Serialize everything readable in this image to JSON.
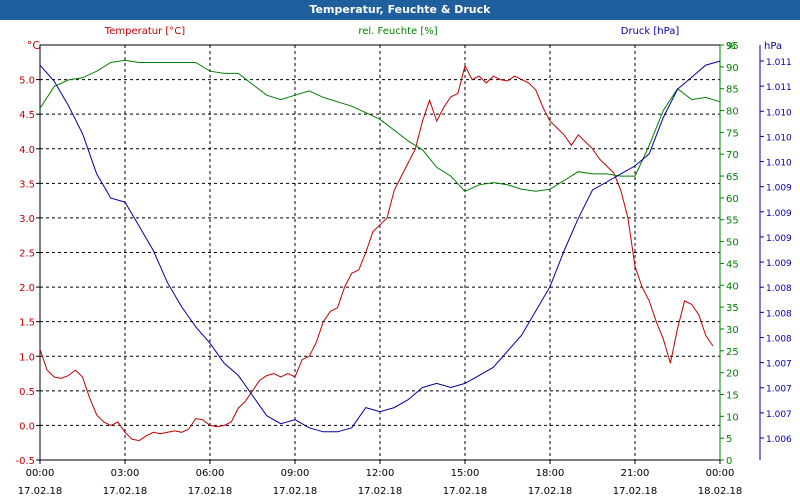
{
  "chart_data": {
    "type": "line",
    "title": "Temperatur, Feuchte & Druck",
    "x_axis": {
      "ticks": [
        {
          "time": "00:00",
          "date": "17.02.18"
        },
        {
          "time": "03:00",
          "date": "17.02.18"
        },
        {
          "time": "06:00",
          "date": "17.02.18"
        },
        {
          "time": "09:00",
          "date": "17.02.18"
        },
        {
          "time": "12:00",
          "date": "17.02.18"
        },
        {
          "time": "15:00",
          "date": "17.02.18"
        },
        {
          "time": "18:00",
          "date": "17.02.18"
        },
        {
          "time": "21:00",
          "date": "17.02.18"
        },
        {
          "time": "00:00",
          "date": "18.02.18"
        }
      ],
      "range_hours": [
        0,
        24
      ]
    },
    "y_axes": {
      "temperature": {
        "label": "Temperatur [°C]",
        "unit": "°C",
        "range": [
          -0.5,
          5.5
        ],
        "ticks": [
          "-0.5",
          "0.0",
          "0.5",
          "1.0",
          "1.5",
          "2.0",
          "2.5",
          "3.0",
          "3.5",
          "4.0",
          "4.5",
          "5.0"
        ]
      },
      "humidity": {
        "label": "rel. Feuchte [%]",
        "unit": "%",
        "range": [
          0,
          95
        ],
        "ticks": [
          "0",
          "5",
          "10",
          "15",
          "20",
          "25",
          "30",
          "35",
          "40",
          "45",
          "50",
          "55",
          "60",
          "65",
          "70",
          "75",
          "80",
          "85",
          "90",
          "95"
        ]
      },
      "pressure": {
        "label": "Druck [hPa]",
        "unit": "hPa",
        "ticks": [
          "1.006",
          "1.007",
          "1.007",
          "1.007",
          "1.008",
          "1.008",
          "1.008",
          "1.009",
          "1.009",
          "1.009",
          "1.009",
          "1.010",
          "1.010",
          "1.010",
          "1.011",
          "1.011"
        ]
      }
    },
    "grid": true,
    "series": [
      {
        "name": "Temperatur [°C]",
        "axis": "temperature",
        "color": "#c00000",
        "x": [
          0,
          0.25,
          0.5,
          0.75,
          1,
          1.25,
          1.5,
          1.75,
          2,
          2.25,
          2.5,
          2.75,
          3,
          3.25,
          3.5,
          3.75,
          4,
          4.25,
          4.5,
          4.75,
          5,
          5.25,
          5.5,
          5.75,
          6,
          6.25,
          6.5,
          6.75,
          7,
          7.25,
          7.5,
          7.75,
          8,
          8.25,
          8.5,
          8.75,
          9,
          9.25,
          9.5,
          9.75,
          10,
          10.25,
          10.5,
          10.75,
          11,
          11.25,
          11.5,
          11.75,
          12,
          12.25,
          12.5,
          12.75,
          13,
          13.25,
          13.5,
          13.75,
          14,
          14.25,
          14.5,
          14.75,
          15,
          15.25,
          15.5,
          15.75,
          16,
          16.25,
          16.5,
          16.75,
          17,
          17.25,
          17.5,
          17.75,
          18,
          18.25,
          18.5,
          18.75,
          19,
          19.25,
          19.5,
          19.75,
          20,
          20.25,
          20.5,
          20.75,
          21,
          21.25,
          21.5,
          21.75,
          22,
          22.25,
          22.5,
          22.75,
          23,
          23.25,
          23.5,
          23.75
        ],
        "values": [
          1.1,
          0.8,
          0.7,
          0.68,
          0.72,
          0.8,
          0.7,
          0.4,
          0.15,
          0.05,
          0.0,
          0.05,
          -0.1,
          -0.2,
          -0.22,
          -0.15,
          -0.1,
          -0.12,
          -0.1,
          -0.08,
          -0.1,
          -0.05,
          0.1,
          0.08,
          0.0,
          -0.02,
          0.0,
          0.05,
          0.25,
          0.35,
          0.5,
          0.65,
          0.72,
          0.75,
          0.7,
          0.75,
          0.7,
          0.95,
          1.0,
          1.2,
          1.5,
          1.65,
          1.7,
          2.0,
          2.2,
          2.25,
          2.5,
          2.8,
          2.9,
          3.0,
          3.4,
          3.6,
          3.8,
          4.0,
          4.4,
          4.7,
          4.4,
          4.6,
          4.75,
          4.8,
          5.2,
          5.0,
          5.05,
          4.95,
          5.05,
          5.0,
          4.98,
          5.05,
          5.0,
          4.95,
          4.85,
          4.6,
          4.4,
          4.3,
          4.2,
          4.05,
          4.2,
          4.1,
          4.0,
          3.85,
          3.75,
          3.65,
          3.4,
          3.0,
          2.3,
          2.0,
          1.8,
          1.5,
          1.25,
          0.9,
          1.4,
          1.8,
          1.75,
          1.6,
          1.3,
          1.15
        ]
      },
      {
        "name": "rel. Feuchte [%]",
        "axis": "humidity",
        "color": "#008000",
        "x": [
          0,
          0.5,
          1,
          1.5,
          2,
          2.5,
          3,
          3.5,
          4,
          4.5,
          5,
          5.5,
          6,
          6.5,
          7,
          7.5,
          8,
          8.5,
          9,
          9.5,
          10,
          10.5,
          11,
          11.5,
          12,
          12.5,
          13,
          13.5,
          14,
          14.5,
          15,
          15.5,
          16,
          16.5,
          17,
          17.5,
          18,
          18.5,
          19,
          19.5,
          20,
          20.5,
          21,
          21.5,
          22,
          22.5,
          23,
          23.5,
          24
        ],
        "values": [
          80.5,
          85.5,
          87,
          87.5,
          89,
          91,
          91.5,
          91,
          91,
          91,
          91,
          91,
          89,
          88.5,
          88.5,
          86,
          83.5,
          82.5,
          83.5,
          84.5,
          83,
          82,
          81,
          79.5,
          78,
          75.5,
          73,
          71,
          67,
          65,
          61.5,
          63,
          63.5,
          63,
          62,
          61.5,
          62,
          64,
          66,
          65.5,
          65.5,
          65,
          65,
          72,
          80,
          85,
          82.5,
          83,
          82
        ]
      },
      {
        "name": "Druck [hPa]",
        "axis": "pressure",
        "color": "#0000a0",
        "x": [
          0,
          0.5,
          1,
          1.5,
          2,
          2.5,
          3,
          3.5,
          4,
          4.5,
          5,
          5.5,
          6,
          6.5,
          7,
          7.5,
          8,
          8.5,
          9,
          9.5,
          10,
          10.5,
          11,
          11.5,
          12,
          12.5,
          13,
          13.5,
          14,
          14.5,
          15,
          15.5,
          16,
          16.5,
          17,
          17.5,
          18,
          18.5,
          19,
          19.5,
          20,
          20.5,
          21,
          21.5,
          22,
          22.5,
          23,
          23.5,
          24
        ],
        "values": [
          1.0112,
          1.0108,
          1.0102,
          1.0095,
          1.0085,
          1.0079,
          1.0078,
          1.0072,
          1.0066,
          1.0058,
          1.0052,
          1.0047,
          1.0043,
          1.0038,
          1.0035,
          1.003,
          1.0025,
          1.0023,
          1.0024,
          1.0022,
          1.0021,
          1.0021,
          1.0022,
          1.0027,
          1.0026,
          1.0027,
          1.0029,
          1.0032,
          1.0033,
          1.0032,
          1.0033,
          1.0035,
          1.0037,
          1.0041,
          1.0045,
          1.0051,
          1.0057,
          1.0066,
          1.0074,
          1.0081,
          1.0083,
          1.0085,
          1.0087,
          1.009,
          1.0099,
          1.0106,
          1.0109,
          1.0112,
          1.0113
        ]
      }
    ]
  }
}
